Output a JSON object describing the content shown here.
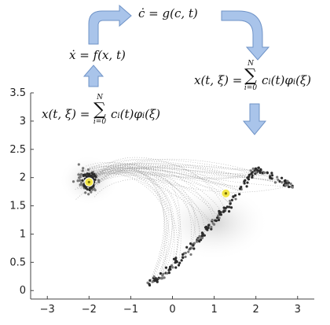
{
  "equations": {
    "top": "ċ = g(c, t)",
    "left_mid": "ẋ = f(x, t)",
    "left_bottom_lhs": "x(t, ξ) =",
    "left_bottom_rhs": "c",
    "right_lhs": "x(t, ξ) =",
    "right_rhs": "c",
    "sum_upper": "N",
    "sum_lower": "i=0",
    "sum_symbol": "∑",
    "term_sub": "i",
    "term_t": "(t)φ",
    "term_xi": "(ξ)"
  },
  "colors": {
    "arrow_fill": "#a9c4ea",
    "arrow_stroke": "#6f93c7",
    "cloud_dark": "#2b2b2b",
    "cloud_mid": "#777777",
    "marker": "#f2e64a",
    "trajectory": "#9a9a9a"
  },
  "chart_data": {
    "type": "scatter",
    "xlim": [
      -3.4,
      3.4
    ],
    "ylim": [
      -0.15,
      3.5
    ],
    "xticks": [
      "−3",
      "−2",
      "−1",
      "0",
      "1",
      "2",
      "3"
    ],
    "yticks": [
      "0",
      "0.5",
      "1",
      "1.5",
      "2",
      "2.5",
      "3",
      "3.5"
    ],
    "xtick_values": [
      -3,
      -2,
      -1,
      0,
      1,
      2,
      3
    ],
    "ytick_values": [
      0,
      0.5,
      1,
      1.5,
      2,
      2.5,
      3,
      3.5
    ],
    "start_mean": [
      -2.0,
      1.92
    ],
    "end_mean": [
      1.28,
      1.72
    ],
    "grid": false
  }
}
